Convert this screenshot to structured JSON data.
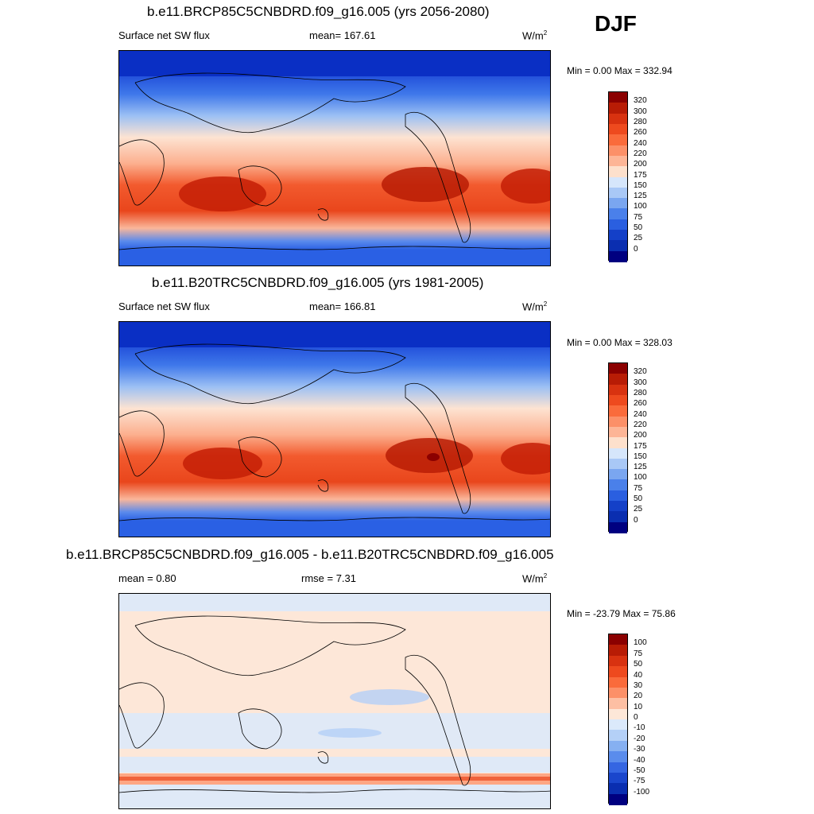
{
  "season": "DJF",
  "panels": [
    {
      "title": "b.e11.BRCP85C5CNBDRD.f09_g16.005 (yrs 2056-2080)",
      "left_text": "Surface net SW flux",
      "mid_text": "mean= 167.61",
      "units": "W/m",
      "units_sup": "2",
      "minmax": "Min =   0.00 Max = 332.94",
      "kind": "abs"
    },
    {
      "title": "b.e11.B20TRC5CNBDRD.f09_g16.005 (yrs 1981-2005)",
      "left_text": "Surface net SW flux",
      "mid_text": "mean= 166.81",
      "units": "W/m",
      "units_sup": "2",
      "minmax": "Min =   0.00 Max = 328.03",
      "kind": "abs"
    },
    {
      "title": "b.e11.BRCP85C5CNBDRD.f09_g16.005 - b.e11.B20TRC5CNBDRD.f09_g16.005",
      "left_text": "mean =   0.80",
      "mid_text": "rmse =   7.31",
      "units": "W/m",
      "units_sup": "2",
      "minmax": "Min = -23.79 Max =  75.86",
      "kind": "diff"
    }
  ],
  "colorbars": {
    "abs": {
      "labels": [
        "320",
        "300",
        "280",
        "260",
        "240",
        "220",
        "200",
        "175",
        "150",
        "125",
        "100",
        "75",
        "50",
        "25",
        "0"
      ],
      "colors": [
        "#8b0000",
        "#b81c05",
        "#d83210",
        "#ee4a1e",
        "#fa6b3b",
        "#fc9068",
        "#fdb596",
        "#fde0cc",
        "#d6e6fb",
        "#a9c8f6",
        "#7aa6f0",
        "#4a80ea",
        "#2a5fe0",
        "#1440c8",
        "#0a2eb0",
        "#000080"
      ]
    },
    "diff": {
      "labels": [
        "100",
        "75",
        "50",
        "40",
        "30",
        "20",
        "10",
        "0",
        "-10",
        "-20",
        "-30",
        "-40",
        "-50",
        "-75",
        "-100"
      ],
      "colors": [
        "#8b0000",
        "#b81c05",
        "#d83210",
        "#ee4a1e",
        "#fa6b3b",
        "#fc9068",
        "#fdbfa3",
        "#fde7d8",
        "#dbe9fb",
        "#b4d0f7",
        "#86b0f1",
        "#5a8cec",
        "#3566e2",
        "#1a46cc",
        "#0a2eb0",
        "#000080"
      ]
    }
  }
}
